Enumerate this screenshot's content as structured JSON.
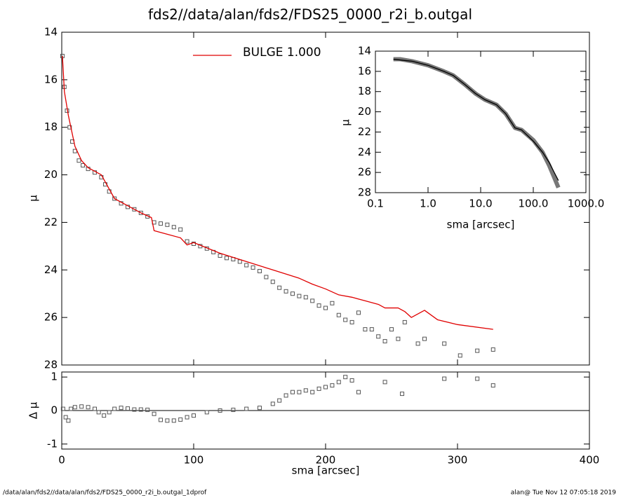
{
  "title": "fds2//data/alan/fds2/FDS25_0000_r2i_b.outgal",
  "footer": {
    "left": "/data/alan/fds2//data/alan/fds2/FDS25_0000_r2i_b.outgal_1dprof",
    "right": "alan@  Tue Nov 12 07:05:18 2019"
  },
  "chart_data": [
    {
      "type": "scatter",
      "ylabel": "μ",
      "xlim": [
        0,
        400
      ],
      "ylim": [
        28,
        14
      ],
      "yticks": [
        14,
        16,
        18,
        20,
        22,
        24,
        26,
        28
      ],
      "series": [
        {
          "kind": "scatter",
          "color": "#555555",
          "x": [
            0.5,
            2,
            4,
            6,
            8,
            10,
            13,
            16,
            20,
            25,
            30,
            33,
            36,
            40,
            45,
            50,
            55,
            60,
            65,
            70,
            75,
            80,
            85,
            90,
            95,
            100,
            105,
            110,
            115,
            120,
            125,
            130,
            135,
            140,
            145,
            150,
            155,
            160,
            165,
            170,
            175,
            180,
            185,
            190,
            195,
            200,
            205,
            210,
            215,
            220,
            225,
            230,
            235,
            240,
            245,
            250,
            255,
            260,
            270,
            275,
            290,
            302,
            315,
            327
          ],
          "values": [
            15,
            16.3,
            17.3,
            18,
            18.6,
            19,
            19.4,
            19.6,
            19.75,
            19.9,
            20.1,
            20.4,
            20.7,
            21,
            21.2,
            21.35,
            21.45,
            21.6,
            21.75,
            22,
            22.05,
            22.1,
            22.2,
            22.3,
            22.8,
            22.9,
            23,
            23.1,
            23.25,
            23.4,
            23.5,
            23.55,
            23.65,
            23.8,
            23.9,
            24.05,
            24.3,
            24.5,
            24.75,
            24.9,
            25,
            25.1,
            25.15,
            25.3,
            25.5,
            25.6,
            25.4,
            25.9,
            26.1,
            26.2,
            25.8,
            26.5,
            26.5,
            26.8,
            27,
            26.5,
            26.9,
            26.2,
            27.1,
            26.9,
            27.1,
            27.6,
            27.4,
            27.35
          ]
        },
        {
          "kind": "line",
          "name": "BULGE  1.000",
          "color": "#e00000",
          "x": [
            0.5,
            2,
            5,
            10,
            15,
            20,
            30,
            40,
            50,
            60,
            68,
            70,
            80,
            90,
            95,
            100,
            120,
            140,
            160,
            180,
            190,
            200,
            210,
            220,
            230,
            240,
            245,
            255,
            260,
            265,
            275,
            285,
            300,
            327
          ],
          "values": [
            15,
            16.5,
            17.5,
            18.8,
            19.4,
            19.7,
            20,
            21,
            21.3,
            21.6,
            21.8,
            22.35,
            22.5,
            22.65,
            22.95,
            22.85,
            23.3,
            23.65,
            24,
            24.35,
            24.6,
            24.8,
            25.05,
            25.15,
            25.3,
            25.45,
            25.6,
            25.6,
            25.75,
            26,
            25.7,
            26.1,
            26.3,
            26.5
          ]
        }
      ]
    },
    {
      "type": "scatter",
      "ylabel": "Δ μ",
      "xlabel": "sma [arcsec]",
      "xlim": [
        0,
        400
      ],
      "ylim": [
        -1.15,
        1.15
      ],
      "xticks": [
        0,
        100,
        200,
        300,
        400
      ],
      "yticks": [
        -1,
        0,
        1
      ],
      "zero_line": true,
      "series": [
        {
          "kind": "scatter",
          "color": "#555555",
          "x": [
            1,
            3,
            5,
            7,
            10,
            15,
            20,
            25,
            28,
            32,
            36,
            40,
            45,
            50,
            55,
            60,
            65,
            70,
            75,
            80,
            85,
            90,
            95,
            100,
            110,
            120,
            130,
            140,
            150,
            160,
            165,
            170,
            175,
            180,
            185,
            190,
            195,
            200,
            205,
            210,
            215,
            220,
            225,
            245,
            258,
            290,
            315,
            327
          ],
          "values": [
            0.05,
            -0.2,
            -0.3,
            0.05,
            0.1,
            0.12,
            0.1,
            0.05,
            -0.05,
            -0.15,
            -0.05,
            0.05,
            0.08,
            0.06,
            0.03,
            0.03,
            0.02,
            -0.1,
            -0.28,
            -0.3,
            -0.3,
            -0.27,
            -0.2,
            -0.15,
            -0.05,
            0,
            0.02,
            0.05,
            0.08,
            0.2,
            0.3,
            0.45,
            0.55,
            0.55,
            0.6,
            0.55,
            0.65,
            0.7,
            0.75,
            0.85,
            1,
            0.9,
            0.55,
            0.85,
            0.5,
            0.95,
            0.95,
            0.75
          ]
        }
      ]
    },
    {
      "type": "scatter",
      "ylabel": "μ",
      "xlabel": "sma [arcsec]",
      "log_x": true,
      "xlim": [
        0.1,
        1000
      ],
      "ylim": [
        28,
        14
      ],
      "xticks": [
        {
          "value": 0.1,
          "label": "0.1"
        },
        {
          "value": 1,
          "label": "1.0"
        },
        {
          "value": 10,
          "label": "10.0"
        },
        {
          "value": 100,
          "label": "100.0"
        },
        {
          "value": 1000,
          "label": "1000.0"
        }
      ],
      "yticks": [
        14,
        16,
        18,
        20,
        22,
        24,
        26,
        28
      ],
      "series": [
        {
          "kind": "band",
          "color": "#777777",
          "x": [
            0.22,
            0.3,
            0.5,
            1,
            2,
            3,
            5,
            8,
            12,
            20,
            30,
            45,
            60,
            100,
            150,
            200,
            250,
            300
          ],
          "values": [
            14.8,
            14.8,
            15,
            15.4,
            16,
            16.4,
            17.3,
            18.2,
            18.8,
            19.3,
            20.2,
            21.6,
            21.8,
            22.8,
            24,
            25.3,
            26.5,
            27.5
          ]
        },
        {
          "kind": "line",
          "color": "#000000",
          "x": [
            0.22,
            0.5,
            1,
            2,
            3,
            5,
            8,
            12,
            20,
            30,
            45,
            60,
            100,
            150,
            200,
            250,
            300
          ],
          "values": [
            14.8,
            15,
            15.4,
            16,
            16.4,
            17.3,
            18.2,
            18.8,
            19.3,
            20.2,
            21.6,
            21.8,
            22.9,
            24,
            25,
            26,
            26.8
          ]
        }
      ]
    }
  ]
}
